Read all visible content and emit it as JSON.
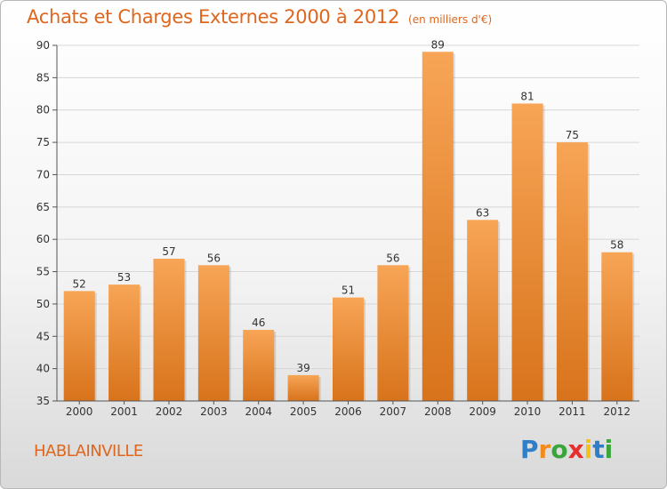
{
  "header": {
    "title": "Achats et Charges Externes 2000 à 2012",
    "subtitle": "(en milliers d'€)"
  },
  "footer": {
    "town": "HABLAINVILLE",
    "logo_letters": [
      "P",
      "r",
      "o",
      "x",
      "i",
      "t",
      "i"
    ]
  },
  "colors": {
    "title": "#e0661d",
    "bar_top": "#f7a556",
    "bar_bottom": "#d8731b",
    "logo": [
      "#2f7fc8",
      "#f28c1a",
      "#3aa53a",
      "#e62e2e",
      "#f2c21a",
      "#2f7fc8",
      "#3aa53a"
    ]
  },
  "chart_data": {
    "type": "bar",
    "title": "Achats et Charges Externes 2000 à 2012",
    "subtitle": "(en milliers d'€)",
    "categories": [
      "2000",
      "2001",
      "2002",
      "2003",
      "2004",
      "2005",
      "2006",
      "2007",
      "2008",
      "2009",
      "2010",
      "2011",
      "2012"
    ],
    "values": [
      52,
      53,
      57,
      56,
      46,
      39,
      51,
      56,
      89,
      63,
      81,
      75,
      58
    ],
    "ylim": [
      35,
      90
    ],
    "yticks": [
      35,
      40,
      45,
      50,
      55,
      60,
      65,
      70,
      75,
      80,
      85,
      90
    ],
    "grid": true,
    "legend": "none"
  }
}
